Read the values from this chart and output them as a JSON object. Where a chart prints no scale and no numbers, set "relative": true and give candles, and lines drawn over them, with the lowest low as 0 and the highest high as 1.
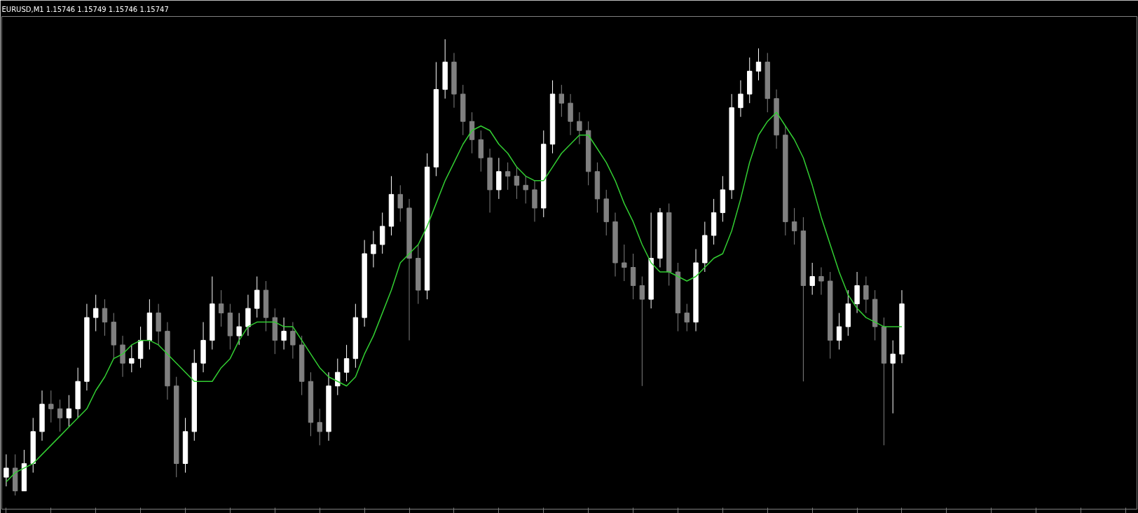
{
  "chart_data": {
    "type": "candlestick",
    "title": "EURUSD,M1  1.15746 1.15749 1.15746 1.15747",
    "relative": true,
    "tick_labels": false,
    "grid": false,
    "categories": [
      null,
      null,
      null,
      null,
      null,
      null,
      null,
      null,
      null,
      null,
      null,
      null,
      null,
      null,
      null,
      null,
      null,
      null,
      null,
      null,
      null,
      null,
      null,
      null,
      null,
      null,
      null,
      null,
      null,
      null,
      null,
      null,
      null,
      null,
      null,
      null,
      null,
      null,
      null,
      null,
      null,
      null,
      null,
      null,
      null,
      null,
      null,
      null,
      null,
      null,
      null,
      null,
      null,
      null,
      null,
      null,
      null,
      null,
      null,
      null,
      null,
      null,
      null,
      null,
      null,
      null,
      null,
      null,
      null,
      null,
      null,
      null,
      null,
      null,
      null,
      null,
      null,
      null,
      null,
      null,
      null,
      null,
      null,
      null,
      null,
      null,
      null,
      null,
      null,
      null,
      null,
      null,
      null,
      null,
      null,
      null,
      null,
      null,
      null,
      null,
      null
    ],
    "ohlc": [
      [
        0.04,
        0.09,
        0.02,
        0.06
      ],
      [
        0.06,
        0.09,
        0.0,
        0.01
      ],
      [
        0.01,
        0.1,
        0.01,
        0.07
      ],
      [
        0.07,
        0.17,
        0.05,
        0.14
      ],
      [
        0.14,
        0.23,
        0.12,
        0.2
      ],
      [
        0.2,
        0.23,
        0.16,
        0.19
      ],
      [
        0.19,
        0.21,
        0.14,
        0.17
      ],
      [
        0.17,
        0.22,
        0.15,
        0.19
      ],
      [
        0.19,
        0.28,
        0.17,
        0.25
      ],
      [
        0.25,
        0.42,
        0.23,
        0.39
      ],
      [
        0.39,
        0.44,
        0.36,
        0.41
      ],
      [
        0.41,
        0.43,
        0.35,
        0.38
      ],
      [
        0.38,
        0.4,
        0.3,
        0.33
      ],
      [
        0.33,
        0.35,
        0.26,
        0.29
      ],
      [
        0.29,
        0.33,
        0.27,
        0.3
      ],
      [
        0.3,
        0.37,
        0.28,
        0.34
      ],
      [
        0.34,
        0.43,
        0.32,
        0.4
      ],
      [
        0.4,
        0.42,
        0.33,
        0.36
      ],
      [
        0.36,
        0.38,
        0.21,
        0.24
      ],
      [
        0.24,
        0.26,
        0.04,
        0.07
      ],
      [
        0.07,
        0.17,
        0.05,
        0.14
      ],
      [
        0.14,
        0.32,
        0.12,
        0.29
      ],
      [
        0.29,
        0.38,
        0.27,
        0.34
      ],
      [
        0.34,
        0.48,
        0.32,
        0.42
      ],
      [
        0.42,
        0.45,
        0.37,
        0.4
      ],
      [
        0.4,
        0.42,
        0.32,
        0.35
      ],
      [
        0.35,
        0.4,
        0.33,
        0.37
      ],
      [
        0.37,
        0.44,
        0.35,
        0.41
      ],
      [
        0.41,
        0.48,
        0.39,
        0.45
      ],
      [
        0.45,
        0.47,
        0.36,
        0.39
      ],
      [
        0.39,
        0.41,
        0.31,
        0.34
      ],
      [
        0.34,
        0.39,
        0.32,
        0.36
      ],
      [
        0.36,
        0.38,
        0.3,
        0.33
      ],
      [
        0.33,
        0.35,
        0.22,
        0.25
      ],
      [
        0.25,
        0.27,
        0.13,
        0.16
      ],
      [
        0.16,
        0.19,
        0.11,
        0.14
      ],
      [
        0.14,
        0.27,
        0.12,
        0.24
      ],
      [
        0.24,
        0.3,
        0.22,
        0.27
      ],
      [
        0.27,
        0.33,
        0.25,
        0.3
      ],
      [
        0.3,
        0.42,
        0.28,
        0.39
      ],
      [
        0.39,
        0.56,
        0.37,
        0.53
      ],
      [
        0.53,
        0.58,
        0.5,
        0.55
      ],
      [
        0.55,
        0.62,
        0.53,
        0.59
      ],
      [
        0.59,
        0.7,
        0.57,
        0.66
      ],
      [
        0.66,
        0.68,
        0.6,
        0.63
      ],
      [
        0.63,
        0.65,
        0.34,
        0.52
      ],
      [
        0.52,
        0.55,
        0.42,
        0.45
      ],
      [
        0.45,
        0.75,
        0.43,
        0.72
      ],
      [
        0.72,
        0.95,
        0.7,
        0.89
      ],
      [
        0.89,
        1.0,
        0.87,
        0.95
      ],
      [
        0.95,
        0.97,
        0.85,
        0.88
      ],
      [
        0.88,
        0.9,
        0.79,
        0.82
      ],
      [
        0.82,
        0.84,
        0.75,
        0.78
      ],
      [
        0.78,
        0.8,
        0.71,
        0.74
      ],
      [
        0.74,
        0.76,
        0.62,
        0.67
      ],
      [
        0.67,
        0.74,
        0.65,
        0.71
      ],
      [
        0.71,
        0.73,
        0.67,
        0.7
      ],
      [
        0.7,
        0.72,
        0.65,
        0.68
      ],
      [
        0.68,
        0.7,
        0.64,
        0.67
      ],
      [
        0.67,
        0.69,
        0.6,
        0.63
      ],
      [
        0.63,
        0.8,
        0.61,
        0.77
      ],
      [
        0.77,
        0.91,
        0.75,
        0.88
      ],
      [
        0.88,
        0.9,
        0.83,
        0.86
      ],
      [
        0.86,
        0.88,
        0.79,
        0.82
      ],
      [
        0.82,
        0.84,
        0.77,
        0.8
      ],
      [
        0.8,
        0.82,
        0.68,
        0.71
      ],
      [
        0.71,
        0.73,
        0.62,
        0.65
      ],
      [
        0.65,
        0.67,
        0.57,
        0.6
      ],
      [
        0.6,
        0.62,
        0.48,
        0.51
      ],
      [
        0.51,
        0.55,
        0.47,
        0.5
      ],
      [
        0.5,
        0.53,
        0.43,
        0.46
      ],
      [
        0.46,
        0.48,
        0.24,
        0.43
      ],
      [
        0.43,
        0.62,
        0.41,
        0.52
      ],
      [
        0.52,
        0.63,
        0.5,
        0.62
      ],
      [
        0.62,
        0.64,
        0.46,
        0.49
      ],
      [
        0.49,
        0.51,
        0.36,
        0.4
      ],
      [
        0.4,
        0.42,
        0.36,
        0.38
      ],
      [
        0.38,
        0.54,
        0.36,
        0.51
      ],
      [
        0.51,
        0.6,
        0.49,
        0.57
      ],
      [
        0.57,
        0.65,
        0.55,
        0.62
      ],
      [
        0.62,
        0.7,
        0.6,
        0.67
      ],
      [
        0.67,
        0.88,
        0.65,
        0.85
      ],
      [
        0.85,
        0.91,
        0.83,
        0.88
      ],
      [
        0.88,
        0.96,
        0.86,
        0.93
      ],
      [
        0.93,
        0.98,
        0.91,
        0.95
      ],
      [
        0.95,
        0.97,
        0.84,
        0.87
      ],
      [
        0.87,
        0.89,
        0.76,
        0.79
      ],
      [
        0.79,
        0.81,
        0.57,
        0.6
      ],
      [
        0.6,
        0.63,
        0.55,
        0.58
      ],
      [
        0.58,
        0.61,
        0.25,
        0.46
      ],
      [
        0.46,
        0.51,
        0.44,
        0.48
      ],
      [
        0.48,
        0.5,
        0.44,
        0.47
      ],
      [
        0.47,
        0.49,
        0.3,
        0.34
      ],
      [
        0.34,
        0.4,
        0.32,
        0.37
      ],
      [
        0.37,
        0.45,
        0.35,
        0.42
      ],
      [
        0.42,
        0.49,
        0.4,
        0.46
      ],
      [
        0.46,
        0.48,
        0.4,
        0.43
      ],
      [
        0.43,
        0.45,
        0.34,
        0.37
      ],
      [
        0.37,
        0.39,
        0.11,
        0.29
      ],
      [
        0.29,
        0.34,
        0.18,
        0.31
      ],
      [
        0.31,
        0.45,
        0.29,
        0.42
      ]
    ],
    "colors": [
      "#ffffff",
      "#808080",
      "#ffffff",
      "#ffffff",
      "#ffffff",
      "#808080",
      "#808080",
      "#ffffff",
      "#ffffff",
      "#ffffff",
      "#ffffff",
      "#808080",
      "#808080",
      "#808080",
      "#ffffff",
      "#ffffff",
      "#ffffff",
      "#808080",
      "#808080",
      "#808080",
      "#ffffff",
      "#ffffff",
      "#ffffff",
      "#ffffff",
      "#808080",
      "#808080",
      "#ffffff",
      "#ffffff",
      "#ffffff",
      "#808080",
      "#808080",
      "#ffffff",
      "#808080",
      "#808080",
      "#808080",
      "#808080",
      "#ffffff",
      "#ffffff",
      "#ffffff",
      "#ffffff",
      "#ffffff",
      "#ffffff",
      "#ffffff",
      "#ffffff",
      "#808080",
      "#808080",
      "#808080",
      "#ffffff",
      "#ffffff",
      "#ffffff",
      "#808080",
      "#808080",
      "#808080",
      "#808080",
      "#808080",
      "#ffffff",
      "#808080",
      "#808080",
      "#808080",
      "#808080",
      "#ffffff",
      "#ffffff",
      "#808080",
      "#808080",
      "#808080",
      "#808080",
      "#808080",
      "#808080",
      "#808080",
      "#808080",
      "#808080",
      "#808080",
      "#ffffff",
      "#ffffff",
      "#808080",
      "#808080",
      "#808080",
      "#ffffff",
      "#ffffff",
      "#ffffff",
      "#ffffff",
      "#ffffff",
      "#ffffff",
      "#ffffff",
      "#ffffff",
      "#808080",
      "#808080",
      "#808080",
      "#808080",
      "#808080",
      "#ffffff",
      "#808080",
      "#808080",
      "#ffffff",
      "#ffffff",
      "#ffffff",
      "#808080",
      "#808080",
      "#808080",
      "#ffffff",
      "#ffffff"
    ],
    "series": [
      {
        "type": "line",
        "color": "#32cd32",
        "values": [
          0.03,
          0.05,
          0.06,
          0.07,
          0.09,
          0.11,
          0.13,
          0.15,
          0.17,
          0.19,
          0.23,
          0.26,
          0.3,
          0.31,
          0.33,
          0.34,
          0.34,
          0.33,
          0.31,
          0.29,
          0.27,
          0.25,
          0.25,
          0.25,
          0.28,
          0.3,
          0.34,
          0.37,
          0.38,
          0.38,
          0.38,
          0.37,
          0.37,
          0.34,
          0.31,
          0.28,
          0.26,
          0.25,
          0.24,
          0.26,
          0.31,
          0.35,
          0.4,
          0.45,
          0.51,
          0.53,
          0.55,
          0.59,
          0.64,
          0.69,
          0.73,
          0.77,
          0.8,
          0.81,
          0.8,
          0.77,
          0.75,
          0.72,
          0.7,
          0.69,
          0.69,
          0.72,
          0.75,
          0.77,
          0.79,
          0.79,
          0.76,
          0.73,
          0.69,
          0.64,
          0.6,
          0.55,
          0.51,
          0.49,
          0.49,
          0.48,
          0.47,
          0.48,
          0.5,
          0.52,
          0.53,
          0.58,
          0.65,
          0.73,
          0.79,
          0.82,
          0.84,
          0.81,
          0.78,
          0.74,
          0.68,
          0.61,
          0.55,
          0.49,
          0.44,
          0.41,
          0.39,
          0.38,
          0.37,
          0.37,
          0.37
        ]
      }
    ]
  }
}
